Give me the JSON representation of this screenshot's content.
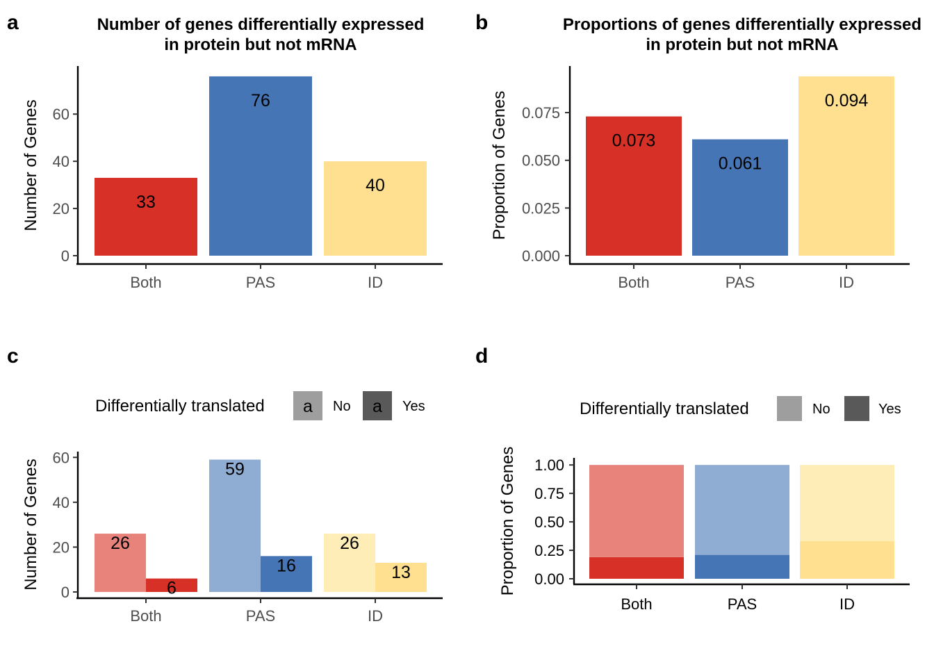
{
  "chart_data": [
    {
      "panel": "a",
      "type": "bar",
      "title_lines": [
        "Number of genes differentially expressed",
        "in protein but not mRNA"
      ],
      "categories": [
        "Both",
        "PAS",
        "ID"
      ],
      "values": [
        33,
        76,
        40
      ],
      "data_labels": [
        "33",
        "76",
        "40"
      ],
      "colors": [
        "#D73027",
        "#4575B4",
        "#FEE090"
      ],
      "ylabel": "Number of Genes",
      "ylim": [
        0,
        79.8
      ],
      "yticks": [
        0,
        20,
        40,
        60
      ],
      "ytick_labels": [
        "0",
        "20",
        "40",
        "60"
      ]
    },
    {
      "panel": "b",
      "type": "bar",
      "title_lines": [
        "Proportions of genes differentially expressed",
        "in protein but not mRNA"
      ],
      "categories": [
        "Both",
        "PAS",
        "ID"
      ],
      "values": [
        0.073,
        0.061,
        0.094
      ],
      "data_labels": [
        "0.073",
        "0.061",
        "0.094"
      ],
      "colors": [
        "#D73027",
        "#4575B4",
        "#FEE090"
      ],
      "ylabel": "Proportion of Genes",
      "ylim": [
        0,
        0.0987
      ],
      "yticks": [
        0,
        0.025,
        0.05,
        0.075
      ],
      "ytick_labels": [
        "0.000",
        "0.025",
        "0.050",
        "0.075"
      ]
    },
    {
      "panel": "c",
      "type": "bar",
      "categories": [
        "Both",
        "PAS",
        "ID"
      ],
      "series": [
        {
          "name": "No",
          "values": [
            26,
            59,
            26
          ],
          "labels": [
            "26",
            "59",
            "26"
          ],
          "colors": [
            "#E8837C",
            "#8FACD3",
            "#FEEDB6"
          ]
        },
        {
          "name": "Yes",
          "values": [
            6,
            16,
            13
          ],
          "labels": [
            "6",
            "16",
            "13"
          ],
          "colors": [
            "#D73027",
            "#4575B4",
            "#FEE090"
          ]
        }
      ],
      "legend": {
        "title": "Differentially translated",
        "key_glyph": "a",
        "position": "top",
        "items": [
          "No",
          "Yes"
        ],
        "key_colors": [
          "#9E9E9E",
          "#595959"
        ]
      },
      "ylabel": "Number of Genes",
      "ylim": [
        0,
        61.95
      ],
      "yticks": [
        0,
        20,
        40,
        60
      ],
      "ytick_labels": [
        "0",
        "20",
        "40",
        "60"
      ]
    },
    {
      "panel": "d",
      "type": "bar",
      "stacked": true,
      "categories": [
        "Both",
        "PAS",
        "ID"
      ],
      "series": [
        {
          "name": "Yes",
          "values": [
            0.19,
            0.21,
            0.33
          ],
          "colors": [
            "#D73027",
            "#4575B4",
            "#FEE090"
          ]
        },
        {
          "name": "No",
          "values": [
            0.81,
            0.79,
            0.67
          ],
          "colors": [
            "#E8837C",
            "#8FACD3",
            "#FEEDB6"
          ]
        }
      ],
      "legend": {
        "title": "Differentially translated",
        "position": "top",
        "items": [
          "No",
          "Yes"
        ],
        "key_colors": [
          "#9E9E9E",
          "#595959"
        ]
      },
      "ylabel": "Proportion of Genes",
      "ylim": [
        0,
        1.05
      ],
      "yticks": [
        0,
        0.25,
        0.5,
        0.75,
        1.0
      ],
      "ytick_labels": [
        "0.00",
        "0.25",
        "0.50",
        "0.75",
        "1.00"
      ]
    }
  ]
}
